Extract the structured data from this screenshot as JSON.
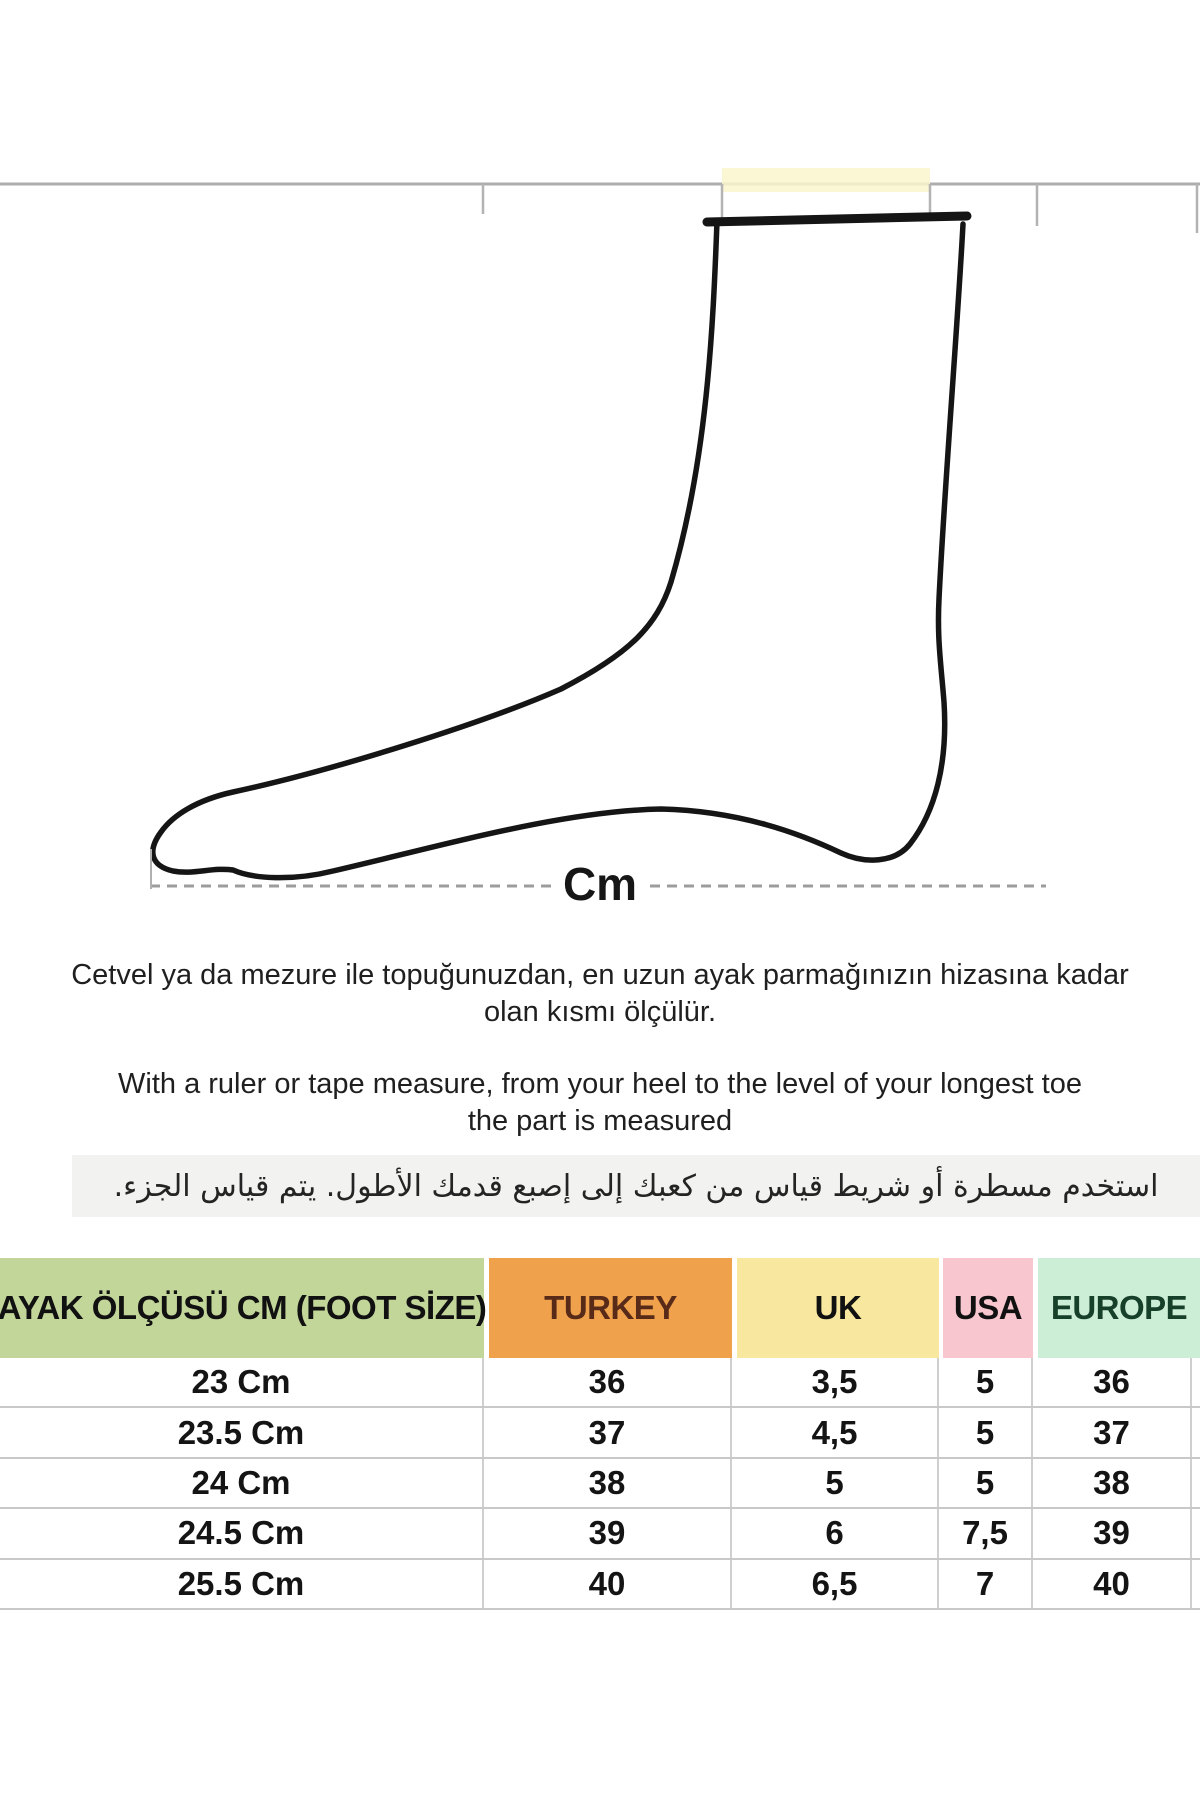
{
  "diagram": {
    "cm_label": "Cm",
    "description": "side-profile outline drawing of a foot and ankle above a dashed measuring line",
    "ruler_highlight_color": "#faf5cd"
  },
  "instructions": {
    "turkish_lines": [
      "Cetvel ya da mezure ile topuğunuzdan, en uzun ayak parmağınızın hizasına kadar",
      "olan kısmı ölçülür."
    ],
    "english_lines": [
      "With a ruler or tape measure, from your heel to the level of your longest toe",
      "the part is measured"
    ],
    "arabic": "استخدم مسطرة أو شريط قياس من كعبك إلى إصبع قدمك الأطول.  يتم قياس الجزء."
  },
  "size_table": {
    "columns": [
      {
        "id": "foot-size",
        "label": "AYAK ÖLÇÜSÜ CM (FOOT SİZE)",
        "bg": "#c2d69a",
        "text_color": "#111111"
      },
      {
        "id": "turkey",
        "label": "TURKEY",
        "bg": "#f0a14b",
        "text_color": "#582a18"
      },
      {
        "id": "uk",
        "label": "UK",
        "bg": "#f8e79e",
        "text_color": "#111111"
      },
      {
        "id": "usa",
        "label": "USA",
        "bg": "#f7c6ce",
        "text_color": "#111111"
      },
      {
        "id": "europe",
        "label": "EUROPE",
        "bg": "#cdeed6",
        "text_color": "#17402a"
      }
    ],
    "rows": [
      [
        "23 Cm",
        "36",
        "3,5",
        "5",
        "36"
      ],
      [
        "23.5 Cm",
        "37",
        "4,5",
        "5",
        "37"
      ],
      [
        "24 Cm",
        "38",
        "5",
        "5",
        "38"
      ],
      [
        "24.5 Cm",
        "39",
        "6",
        "7,5",
        "39"
      ],
      [
        "25.5 Cm",
        "40",
        "6,5",
        "7",
        "40"
      ]
    ]
  }
}
